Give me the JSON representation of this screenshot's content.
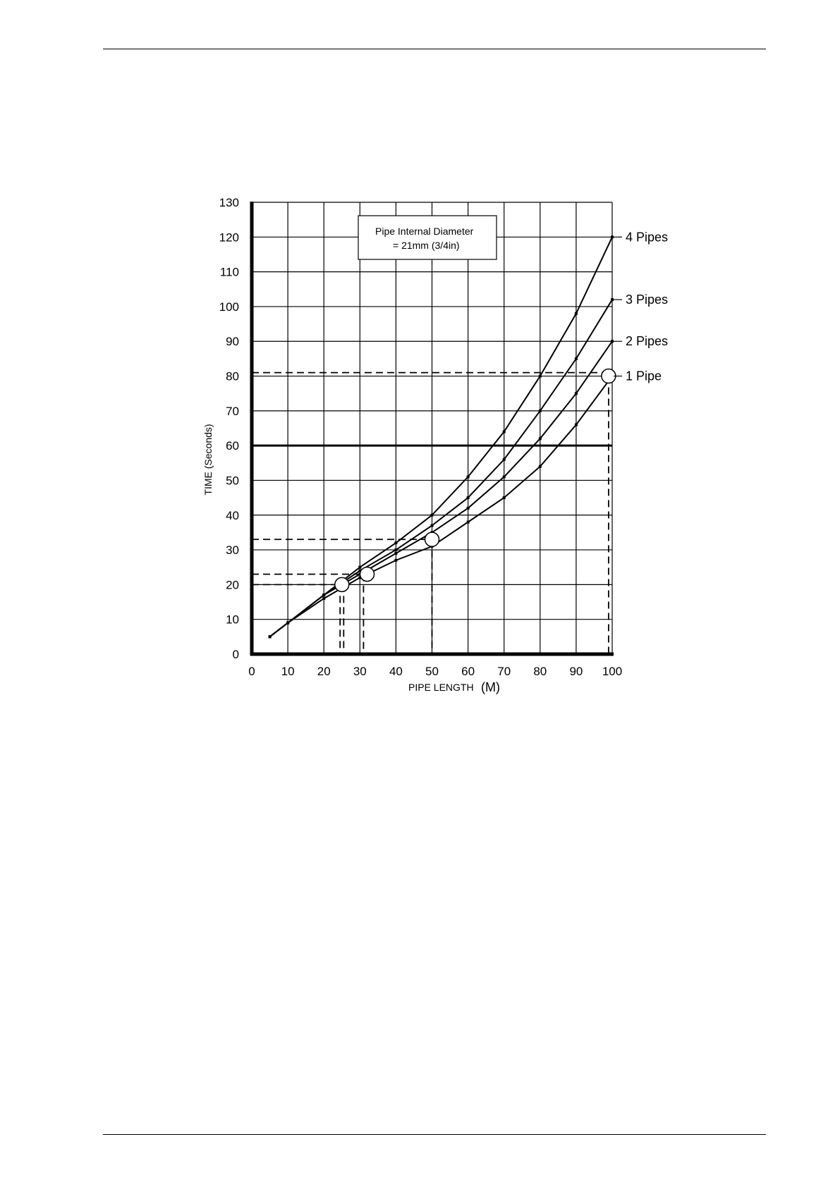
{
  "chart_data": {
    "type": "line",
    "title": "",
    "annotation": {
      "line1": "Pipe Internal Diameter",
      "line2": "= 21mm   (3/4in)"
    },
    "xlabel": "PIPE LENGTH",
    "xlabel_unit": "(M)",
    "ylabel": "TIME (Seconds)",
    "xlim": [
      0,
      100
    ],
    "ylim": [
      0,
      130
    ],
    "x_ticks": [
      {
        "value": 0,
        "label": "0"
      },
      {
        "value": 10,
        "label": "10"
      },
      {
        "value": 20,
        "label": "20"
      },
      {
        "value": 30,
        "label": "30"
      },
      {
        "value": 40,
        "label": "40"
      },
      {
        "value": 50,
        "label": "50"
      },
      {
        "value": 60,
        "label": "60"
      },
      {
        "value": 70,
        "label": "70"
      },
      {
        "value": 80,
        "label": "80"
      },
      {
        "value": 90,
        "label": "90"
      },
      {
        "value": 100,
        "label": "100"
      }
    ],
    "y_ticks": [
      {
        "value": 0,
        "label": "0"
      },
      {
        "value": 10,
        "label": "10"
      },
      {
        "value": 20,
        "label": "20"
      },
      {
        "value": 30,
        "label": "30"
      },
      {
        "value": 40,
        "label": "40"
      },
      {
        "value": 50,
        "label": "50"
      },
      {
        "value": 60,
        "label": "60"
      },
      {
        "value": 70,
        "label": "70"
      },
      {
        "value": 80,
        "label": "80"
      },
      {
        "value": 90,
        "label": "90"
      },
      {
        "value": 100,
        "label": "100"
      },
      {
        "value": 110,
        "label": "110"
      },
      {
        "value": 120,
        "label": "120"
      },
      {
        "value": 130,
        "label": "130"
      }
    ],
    "grid": true,
    "reference_line": {
      "y": 60
    },
    "series": [
      {
        "name": "4 Pipes",
        "x": [
          5,
          10,
          20,
          30,
          40,
          50,
          60,
          70,
          80,
          90,
          100
        ],
        "y": [
          5,
          9,
          17,
          25,
          32,
          40,
          51,
          64,
          80,
          98,
          120
        ]
      },
      {
        "name": "3 Pipes",
        "x": [
          5,
          10,
          20,
          30,
          40,
          50,
          60,
          70,
          80,
          90,
          100
        ],
        "y": [
          5,
          9,
          17,
          24,
          30,
          37,
          45,
          56,
          70,
          85,
          102
        ]
      },
      {
        "name": "2 Pipes",
        "x": [
          5,
          10,
          20,
          30,
          40,
          50,
          60,
          70,
          80,
          90,
          100
        ],
        "y": [
          5,
          9,
          17,
          23,
          29,
          35,
          42,
          51,
          62,
          75,
          90
        ]
      },
      {
        "name": "1 Pipe",
        "x": [
          5,
          10,
          20,
          30,
          40,
          50,
          60,
          70,
          80,
          90,
          100
        ],
        "y": [
          5,
          9,
          16,
          22,
          27,
          31,
          38,
          45,
          54,
          66,
          80
        ]
      }
    ],
    "markers": [
      {
        "x": 25,
        "y": 20,
        "vline_x": [
          24.5,
          25.5
        ],
        "hline_y": 20
      },
      {
        "x": 32,
        "y": 23,
        "vline_x": [
          31
        ],
        "hline_y": 23
      },
      {
        "x": 50,
        "y": 33,
        "vline_x": [
          50
        ],
        "hline_y": 33
      },
      {
        "x": 99,
        "y": 80,
        "vline_x": [
          99
        ],
        "hline_y": 81
      }
    ]
  }
}
